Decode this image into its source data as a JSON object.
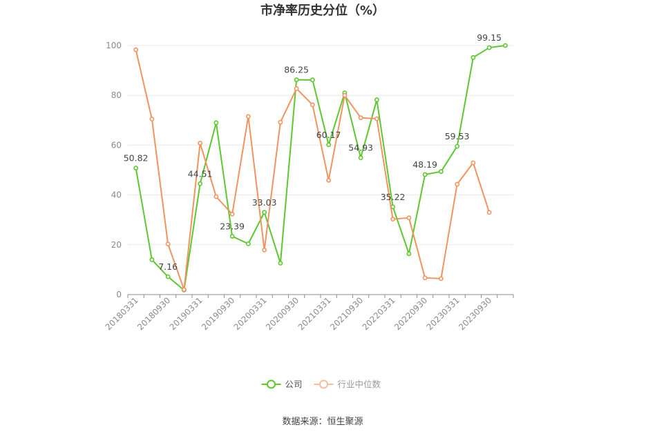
{
  "chart_data": {
    "type": "line",
    "title": "市净率历史分位（%）",
    "source_text": "数据来源：恒生聚源",
    "ylim": [
      0,
      100
    ],
    "yticks": [
      0,
      20,
      40,
      60,
      80,
      100
    ],
    "grid": true,
    "legend_position": "bottom",
    "categories": [
      "20180331",
      "20180630",
      "20180930",
      "20181231",
      "20190331",
      "20190630",
      "20190930",
      "20191231",
      "20200331",
      "20200630",
      "20200930",
      "20201231",
      "20210331",
      "20210630",
      "20210930",
      "20211231",
      "20220331",
      "20220630",
      "20220930",
      "20221231",
      "20230331",
      "20230630",
      "20230930",
      "20231231"
    ],
    "tick_labels": [
      "20180331",
      "20180930",
      "20190331",
      "20190930",
      "20200331",
      "20200930",
      "20210331",
      "20210930",
      "20220331",
      "20220930",
      "20230331",
      "20230930"
    ],
    "series": [
      {
        "name": "公司",
        "color": "#5cc72f",
        "values": [
          50.82,
          14.0,
          7.16,
          1.8,
          44.51,
          69.0,
          23.39,
          20.4,
          33.03,
          12.6,
          86.25,
          86.2,
          60.17,
          81.0,
          54.93,
          78.2,
          35.22,
          16.4,
          48.19,
          49.4,
          59.53,
          95.2,
          99.15,
          100.0
        ],
        "labels": [
          {
            "index": 0,
            "text": "50.82"
          },
          {
            "index": 2,
            "text": "7.16"
          },
          {
            "index": 4,
            "text": "44.51"
          },
          {
            "index": 6,
            "text": "23.39"
          },
          {
            "index": 8,
            "text": "33.03"
          },
          {
            "index": 10,
            "text": "86.25"
          },
          {
            "index": 12,
            "text": "60.17"
          },
          {
            "index": 14,
            "text": "54.93"
          },
          {
            "index": 16,
            "text": "35.22"
          },
          {
            "index": 18,
            "text": "48.19"
          },
          {
            "index": 20,
            "text": "59.53"
          },
          {
            "index": 22,
            "text": "99.15"
          }
        ]
      },
      {
        "name": "行业中位数",
        "color": "#f0935e",
        "values": [
          98.3,
          70.5,
          20.3,
          2.0,
          60.8,
          39.3,
          32.3,
          71.5,
          17.9,
          69.2,
          82.7,
          76.2,
          45.9,
          80.0,
          71.0,
          70.6,
          30.3,
          30.8,
          6.7,
          6.4,
          44.3,
          52.9,
          33.0,
          null
        ]
      }
    ]
  }
}
